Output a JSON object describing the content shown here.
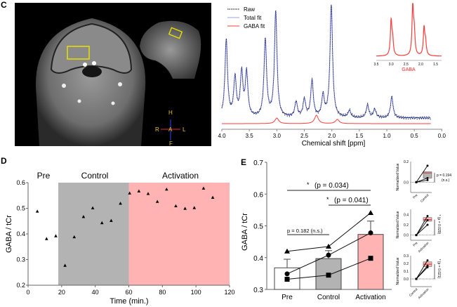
{
  "panels": {
    "C": {
      "label": "C",
      "mri": {
        "orientation": {
          "top": "H",
          "left": "R",
          "center": "A",
          "right": "L",
          "bottom": "F"
        },
        "roi_color": "#e8e000"
      },
      "spectrum": {
        "legend": [
          {
            "label": "Raw",
            "color": "#000000",
            "style": "dashed"
          },
          {
            "label": "Total fit",
            "color": "#9aa0ee",
            "style": "solid"
          },
          {
            "label": "GABA fit",
            "color": "#ff2a2a",
            "style": "solid"
          }
        ],
        "xlabel": "Chemical shift [ppm]",
        "xticks": [
          "4.0",
          "3.5",
          "3.0",
          "2.5",
          "2.0",
          "1.5",
          "1.0",
          "0.5",
          "0.0"
        ],
        "inset": {
          "xlabel": "GABA",
          "xticks": [
            "3.5",
            "3.0",
            "2.5",
            "2.0",
            "1.5"
          ],
          "color": "#ff2a2a"
        }
      }
    },
    "D": {
      "label": "D",
      "phase_labels": [
        "Pre",
        "Control",
        "Activation"
      ]
    },
    "E": {
      "label": "E",
      "annotations": {
        "sig1_star": "*",
        "sig1_text": "(p = 0.034)",
        "sig2_star": "*",
        "sig2_text": "(p = 0.041)",
        "ns_text": "p = 0.182 (n.s.)"
      },
      "mini": [
        {
          "ylabel": "Normalized Value",
          "yticks": [
            "0.2",
            "0.0"
          ],
          "xticks": [
            "Pre",
            "Control"
          ],
          "pvalue": "p = 0.194",
          "sig": "(n.s.)"
        },
        {
          "ylabel": "Normalized Value",
          "yticks": [
            "0.4",
            "0.2",
            "0.0"
          ],
          "xticks": [
            "Pre",
            "Activation"
          ],
          "pvalue": "* (p = 0.029)",
          "sig": ""
        },
        {
          "ylabel": "Normalized Value",
          "yticks": [
            "0.3",
            "0.2",
            "0.1",
            "0.0"
          ],
          "xticks": [
            "Control",
            "Activation"
          ],
          "pvalue": "* (p = 0.021)",
          "sig": ""
        }
      ]
    }
  },
  "chart_data": [
    {
      "id": "spectrum",
      "type": "line",
      "title": "",
      "xlabel": "Chemical shift [ppm]",
      "ylabel": "",
      "xlim": [
        4.0,
        0.0
      ],
      "series": [
        {
          "name": "Raw",
          "peaks_ppm": [
            3.92,
            3.76,
            3.64,
            3.55,
            3.21,
            3.02,
            2.36,
            2.01,
            1.35,
            0.91
          ]
        },
        {
          "name": "Total fit",
          "peaks_ppm": [
            3.92,
            3.76,
            3.64,
            3.55,
            3.21,
            3.02,
            2.36,
            2.01,
            1.35,
            0.91
          ]
        },
        {
          "name": "GABA fit",
          "peaks_ppm": [
            3.0,
            2.28,
            1.9
          ]
        }
      ]
    },
    {
      "id": "timecourse",
      "type": "scatter",
      "title": "",
      "xlabel": "Time (min.)",
      "ylabel": "GABA / tCr",
      "xlim": [
        0,
        120
      ],
      "ylim": [
        0.2,
        0.6
      ],
      "xticks": [
        0,
        20,
        40,
        60,
        80,
        100,
        120
      ],
      "yticks": [
        0.2,
        0.3,
        0.4,
        0.5,
        0.6
      ],
      "regions": [
        {
          "name": "Pre",
          "x": [
            0,
            18
          ],
          "color": "#ffffff"
        },
        {
          "name": "Control",
          "x": [
            18,
            60
          ],
          "color": "#b3b3b3"
        },
        {
          "name": "Activation",
          "x": [
            60,
            120
          ],
          "color": "#ffb3b3"
        }
      ],
      "points": [
        [
          5.5,
          0.488
        ],
        [
          11,
          0.381
        ],
        [
          16.5,
          0.392
        ],
        [
          22,
          0.277
        ],
        [
          27.5,
          0.388
        ],
        [
          33,
          0.467
        ],
        [
          38.5,
          0.501
        ],
        [
          44,
          0.443
        ],
        [
          49.5,
          0.452
        ],
        [
          55,
          0.519
        ],
        [
          60.5,
          0.559
        ],
        [
          66,
          0.567
        ],
        [
          71.5,
          0.557
        ],
        [
          77,
          0.526
        ],
        [
          82.5,
          0.574
        ],
        [
          88,
          0.509
        ],
        [
          93.5,
          0.499
        ],
        [
          99,
          0.502
        ],
        [
          104.5,
          0.578
        ],
        [
          110,
          0.542
        ]
      ]
    },
    {
      "id": "group-bars",
      "type": "bar",
      "title": "",
      "xlabel": "",
      "ylabel": "GABA / tCr",
      "ylim": [
        0.3,
        0.7
      ],
      "yticks": [
        0.3,
        0.4,
        0.5,
        0.6,
        0.7
      ],
      "categories": [
        "Pre",
        "Control",
        "Activation"
      ],
      "values": [
        0.368,
        0.397,
        0.473
      ],
      "errors": [
        0.027,
        0.025,
        0.042
      ],
      "colors": [
        "#ffffff",
        "#b3b3b3",
        "#ffb3b3"
      ],
      "subjects": [
        {
          "marker": "triangle",
          "values": [
            0.42,
            0.435,
            0.541
          ]
        },
        {
          "marker": "circle",
          "values": [
            0.349,
            0.408,
            0.478
          ]
        },
        {
          "marker": "square",
          "values": [
            0.332,
            0.345,
            0.398
          ]
        }
      ]
    },
    {
      "id": "mini-pre-control",
      "type": "line",
      "ylabel": "Normalized Value",
      "categories": [
        "Pre",
        "Control"
      ],
      "ylim": [
        -0.1,
        0.2
      ],
      "series": [
        {
          "name": "s1",
          "values": [
            0.0,
            0.16
          ]
        },
        {
          "name": "s2",
          "values": [
            0.0,
            0.04
          ]
        },
        {
          "name": "s3",
          "values": [
            0.0,
            0.02
          ]
        }
      ],
      "box": {
        "q1": 0.04,
        "median": 0.09,
        "q3": 0.1,
        "whisker_high": 0.12
      }
    },
    {
      "id": "mini-pre-activation",
      "type": "line",
      "ylabel": "Normalized Value",
      "categories": [
        "Pre",
        "Activation"
      ],
      "ylim": [
        -0.1,
        0.5
      ],
      "series": [
        {
          "name": "s1",
          "values": [
            0.0,
            0.37
          ]
        },
        {
          "name": "s2",
          "values": [
            0.0,
            0.29
          ]
        },
        {
          "name": "s3",
          "values": [
            0.0,
            0.2
          ]
        }
      ],
      "box": {
        "q1": 0.27,
        "median": 0.3,
        "q3": 0.34
      }
    },
    {
      "id": "mini-control-activation",
      "type": "line",
      "ylabel": "Normalized Value",
      "categories": [
        "Control",
        "Activation"
      ],
      "ylim": [
        -0.1,
        0.3
      ],
      "series": [
        {
          "name": "s1",
          "values": [
            0.0,
            0.24
          ]
        },
        {
          "name": "s2",
          "values": [
            0.0,
            0.17
          ]
        },
        {
          "name": "s3",
          "values": [
            0.0,
            0.15
          ]
        }
      ],
      "box": {
        "q1": 0.16,
        "median": 0.19,
        "q3": 0.22
      }
    }
  ]
}
